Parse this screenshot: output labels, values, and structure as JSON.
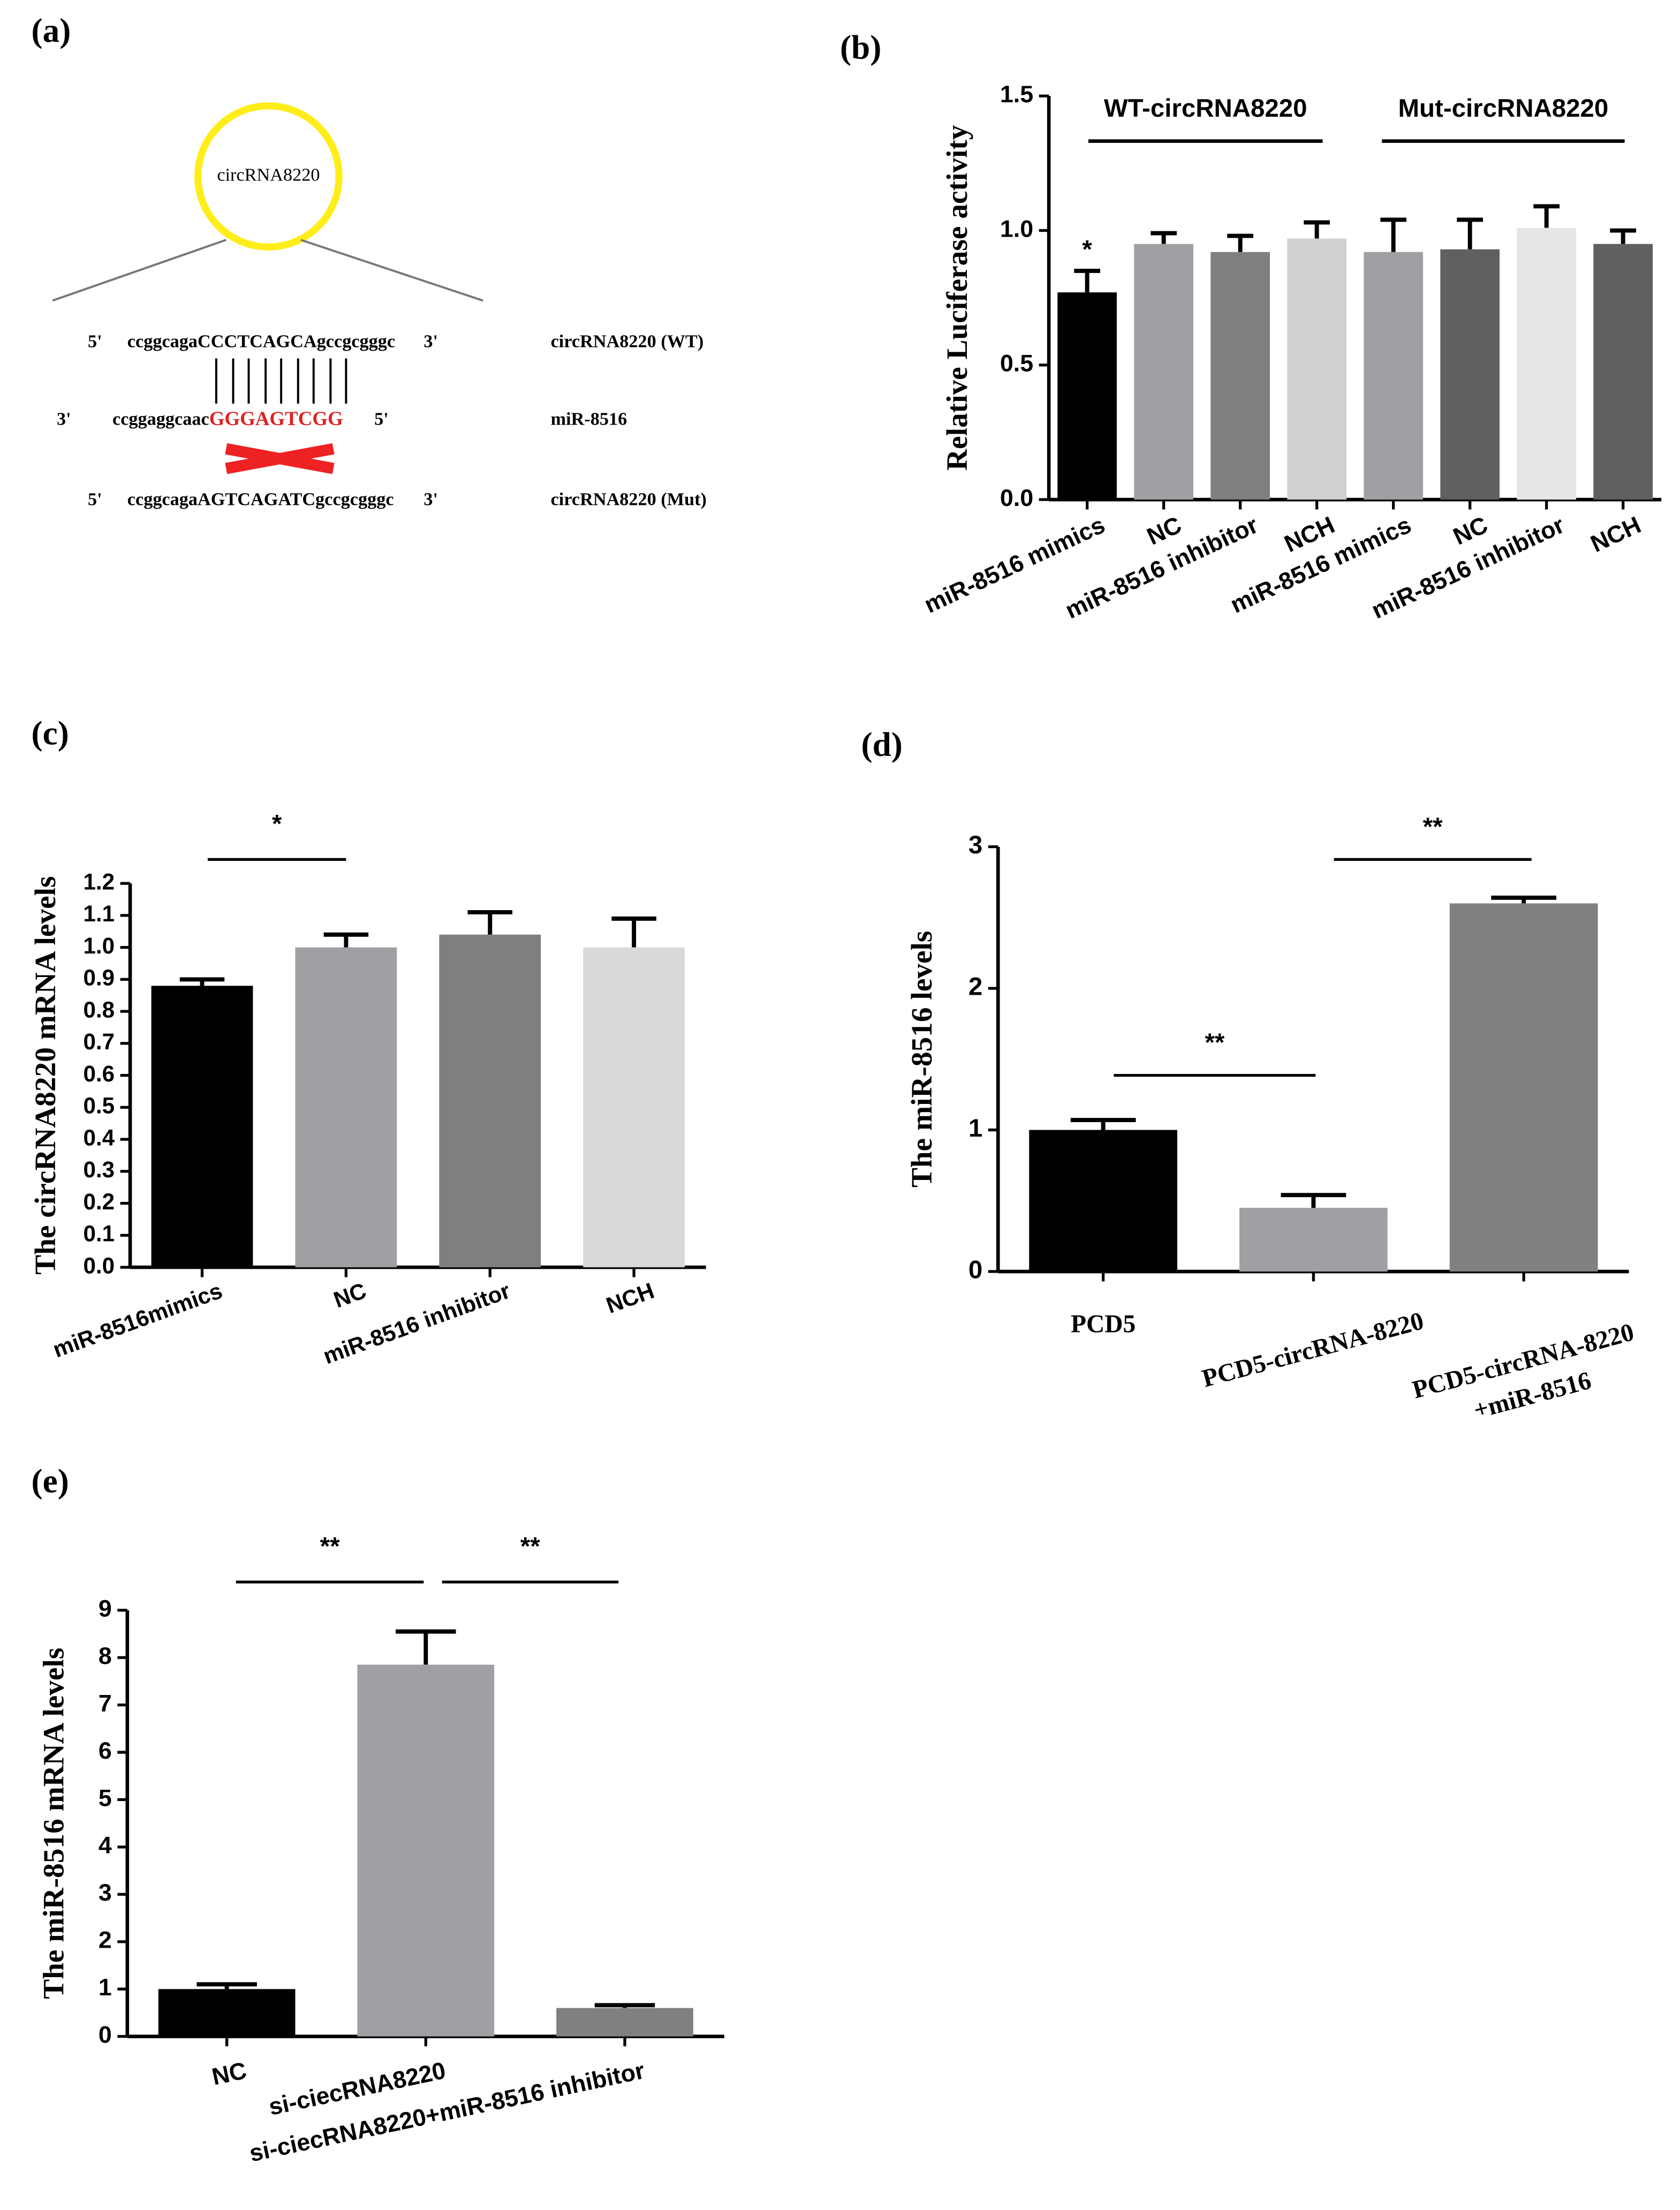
{
  "diagram": {
    "panel": "(a)",
    "circle_label": "circRNA8220",
    "rows": [
      {
        "left": "5'",
        "sequence": "ccggcagaCCCTCAGCAgccgcgggc",
        "right": "3'",
        "name": "circRNA8220 (WT)"
      },
      {
        "left": "3'",
        "sequence": "ccggaggcaac",
        "highlight": "GGGAGTCGG",
        "right": "5'",
        "name": "miR-8516"
      },
      {
        "left": "5'",
        "sequence": "ccggcagaAGTCAGATCgccgcgggc",
        "right": "3'",
        "name": "circRNA8220 (Mut)"
      }
    ]
  },
  "chart_data": [
    {
      "type": "bar",
      "panel": "(b)",
      "ylabel": "Relative Luciferase activity",
      "categories": [
        "miR-8516 mimics",
        "NC",
        "miR-8516 inhibitor",
        "NCH",
        "miR-8516 mimics",
        "NC",
        "miR-8516 inhibitor",
        "NCH"
      ],
      "values": [
        0.77,
        0.95,
        0.92,
        0.97,
        0.92,
        0.93,
        1.01,
        0.95
      ],
      "errors": [
        0.08,
        0.04,
        0.06,
        0.06,
        0.12,
        0.11,
        0.08,
        0.05
      ],
      "colors": [
        "#000000",
        "#a0a0a4",
        "#7f7f7f",
        "#d0d0d0",
        "#a0a0a4",
        "#606060",
        "#e6e6e6",
        "#606060"
      ],
      "ylim": [
        0,
        1.5
      ],
      "yticks": [
        {
          "value": 0,
          "label": "0.0"
        },
        0.5,
        {
          "value": 1,
          "label": "1.0"
        },
        1.5
      ],
      "groups": [
        "WT-circRNA8220",
        "Mut-circRNA8220"
      ],
      "annotations": [
        "*"
      ]
    },
    {
      "type": "bar",
      "panel": "(c)",
      "ylabel": "The circRNA8220 mRNA levels",
      "categories": [
        "miR-8516mimics",
        "NC",
        "miR-8516 inhibitor",
        "NCH"
      ],
      "values": [
        0.88,
        1.0,
        1.04,
        1.0
      ],
      "errors": [
        0.02,
        0.04,
        0.07,
        0.09
      ],
      "colors": [
        "#000000",
        "#a0a0a4",
        "#7f7f7f",
        "#d9d9d9"
      ],
      "ylim": [
        0,
        1.2
      ],
      "yticks": [
        {
          "value": 0,
          "label": "0.0"
        },
        0.1,
        0.2,
        0.3,
        0.4,
        0.5,
        0.6,
        0.7,
        0.8,
        0.9,
        {
          "value": 1,
          "label": "1.0"
        },
        1.1,
        1.2
      ],
      "annotations": [
        "*"
      ]
    },
    {
      "type": "bar",
      "panel": "(d)",
      "ylabel": "The miR-8516 levels",
      "categories": [
        "PCD5",
        "PCD5-circRNA-8220",
        "PCD5-circRNA-8220\n+miR-8516"
      ],
      "values": [
        1.0,
        0.45,
        2.6
      ],
      "errors": [
        0.07,
        0.09,
        0.04
      ],
      "colors": [
        "#000000",
        "#a0a0a4",
        "#808080"
      ],
      "ylim": [
        0,
        3
      ],
      "yticks": [
        0,
        1,
        2,
        3
      ],
      "annotations": [
        "**",
        "**"
      ]
    },
    {
      "type": "bar",
      "panel": "(e)",
      "ylabel": "The miR-8516 mRNA levels",
      "categories": [
        "NC",
        "si-ciecRNA8220",
        "si-ciecRNA8220+miR-8516 inhibitor"
      ],
      "values": [
        1.0,
        7.85,
        0.6
      ],
      "errors": [
        0.1,
        0.7,
        0.06
      ],
      "colors": [
        "#000000",
        "#a0a0a4",
        "#808080"
      ],
      "ylim": [
        0,
        9
      ],
      "yticks": [
        0,
        1,
        2,
        3,
        4,
        5,
        6,
        7,
        8,
        9
      ],
      "annotations": [
        "**",
        "**"
      ]
    }
  ]
}
